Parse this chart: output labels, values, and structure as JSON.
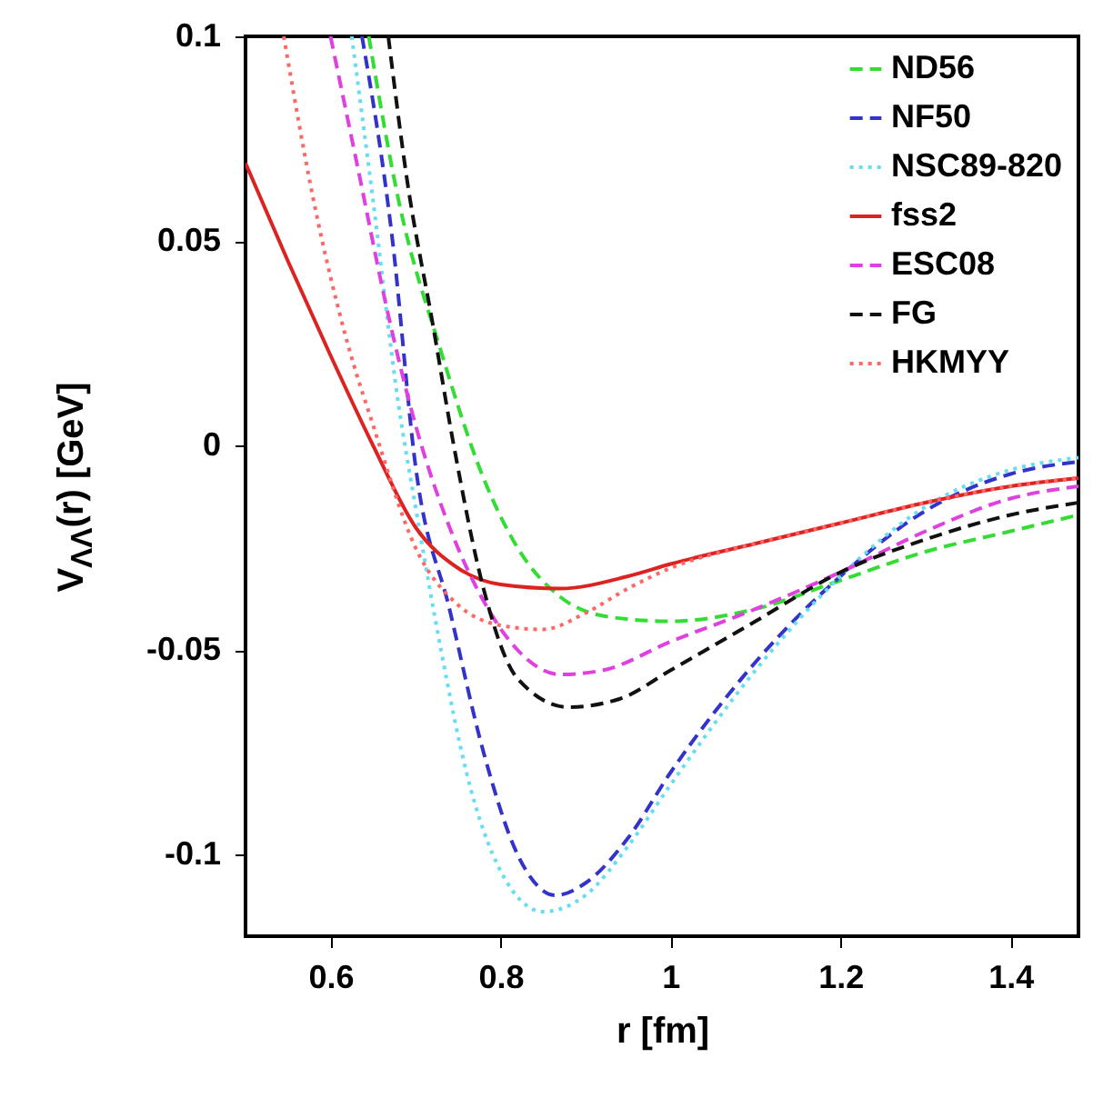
{
  "chart_data": {
    "type": "line",
    "xlabel": "r [fm]",
    "ylabel": "V$_{ΛΛ}$(r) [GeV]",
    "xlim": [
      0.5,
      1.48
    ],
    "xticks": [
      0.6,
      0.8,
      1,
      1.2,
      1.4
    ],
    "ylim": [
      -0.12,
      0.1
    ],
    "yticks": [
      -0.1,
      -0.05,
      0,
      0.05,
      0.1
    ],
    "grid": false,
    "legend": "top right",
    "marker": "none",
    "series": [
      {
        "name": "ND56",
        "color": "#33dd33",
        "line_style": "dashed",
        "x": [
          0.645,
          0.68,
          0.73,
          0.78,
          0.82,
          0.87,
          0.93,
          1.0,
          1.1,
          1.2,
          1.3,
          1.4,
          1.48
        ],
        "values": [
          0.1,
          0.06,
          0.023,
          -0.008,
          -0.025,
          -0.037,
          -0.042,
          -0.043,
          -0.04,
          -0.033,
          -0.026,
          -0.021,
          -0.017
        ]
      },
      {
        "name": "NF50",
        "color": "#3333cc",
        "line_style": "dashed",
        "x": [
          0.637,
          0.673,
          0.7,
          0.74,
          0.78,
          0.82,
          0.865,
          0.9,
          0.95,
          1.0,
          1.1,
          1.2,
          1.3,
          1.4,
          1.48
        ],
        "values": [
          0.1,
          0.05,
          -0.005,
          -0.04,
          -0.075,
          -0.1,
          -0.11,
          -0.107,
          -0.096,
          -0.08,
          -0.053,
          -0.032,
          -0.016,
          -0.007,
          -0.004
        ]
      },
      {
        "name": "NSC89-820",
        "color": "#66ddf0",
        "line_style": "dotted",
        "x": [
          0.625,
          0.65,
          0.68,
          0.7,
          0.73,
          0.76,
          0.8,
          0.85,
          0.9,
          0.95,
          1.0,
          1.1,
          1.2,
          1.3,
          1.4,
          1.48
        ],
        "values": [
          0.1,
          0.06,
          0.01,
          -0.015,
          -0.05,
          -0.08,
          -0.104,
          -0.114,
          -0.11,
          -0.098,
          -0.083,
          -0.055,
          -0.032,
          -0.015,
          -0.006,
          -0.003
        ]
      },
      {
        "name": "fss2",
        "color": "#dd2222",
        "line_style": "solid",
        "x": [
          0.5,
          0.55,
          0.6,
          0.65,
          0.7,
          0.75,
          0.8,
          0.87,
          0.95,
          1.0,
          1.1,
          1.2,
          1.3,
          1.4,
          1.48
        ],
        "values": [
          0.069,
          0.045,
          0.022,
          0.0,
          -0.02,
          -0.03,
          -0.034,
          -0.035,
          -0.032,
          -0.029,
          -0.024,
          -0.019,
          -0.014,
          -0.01,
          -0.008
        ]
      },
      {
        "name": "ESC08",
        "color": "#e040e0",
        "line_style": "dashed",
        "x": [
          0.6,
          0.63,
          0.67,
          0.7,
          0.74,
          0.78,
          0.82,
          0.87,
          0.92,
          1.0,
          1.1,
          1.2,
          1.3,
          1.4,
          1.48
        ],
        "values": [
          0.1,
          0.07,
          0.03,
          0.005,
          -0.02,
          -0.038,
          -0.05,
          -0.056,
          -0.055,
          -0.048,
          -0.04,
          -0.031,
          -0.021,
          -0.013,
          -0.01
        ]
      },
      {
        "name": "FG",
        "color": "#111111",
        "line_style": "dashed",
        "x": [
          0.668,
          0.69,
          0.72,
          0.745,
          0.78,
          0.82,
          0.88,
          0.94,
          1.0,
          1.1,
          1.2,
          1.3,
          1.4,
          1.48
        ],
        "values": [
          0.1,
          0.065,
          0.03,
          0.0,
          -0.035,
          -0.057,
          -0.064,
          -0.062,
          -0.055,
          -0.043,
          -0.031,
          -0.023,
          -0.017,
          -0.014
        ]
      },
      {
        "name": "HKMYY",
        "color": "#ff6666",
        "line_style": "dotted",
        "x": [
          0.545,
          0.58,
          0.62,
          0.65,
          0.7,
          0.75,
          0.8,
          0.85,
          0.9,
          0.95,
          1.0,
          1.1,
          1.2,
          1.3,
          1.4,
          1.48
        ],
        "values": [
          0.1,
          0.06,
          0.025,
          0.005,
          -0.025,
          -0.039,
          -0.044,
          -0.045,
          -0.041,
          -0.035,
          -0.03,
          -0.024,
          -0.019,
          -0.014,
          -0.01,
          -0.008
        ]
      }
    ]
  }
}
